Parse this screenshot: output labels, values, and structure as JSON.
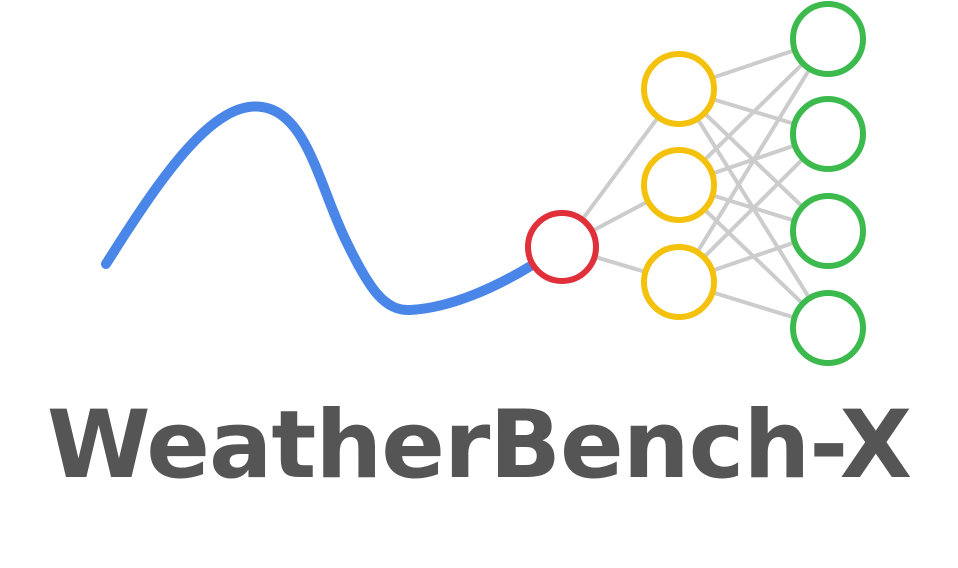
{
  "logo": {
    "title": "WeatherBench-X",
    "icon_name": "weather-curve-neural-network-icon"
  },
  "colors": {
    "curve": "#4a86e8",
    "input_node": "#e0303a",
    "hidden_nodes": "#f4c20d",
    "output_nodes": "#3dba4e",
    "connections": "#cccccc",
    "title_text": "#555555"
  }
}
